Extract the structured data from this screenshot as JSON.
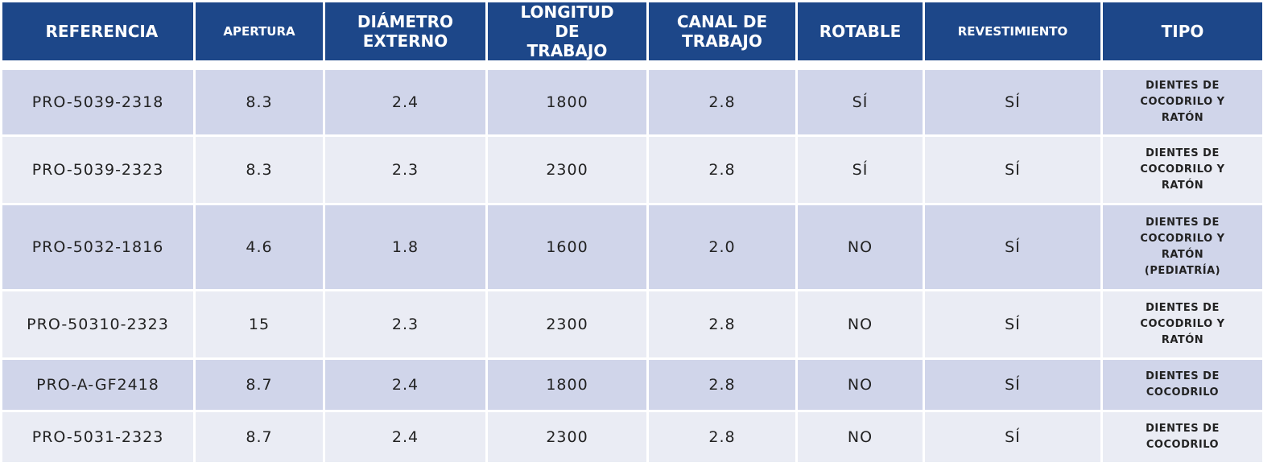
{
  "table": {
    "header": [
      "REFERENCIA",
      "APERTURA",
      "DIÁMETRO EXTERNO",
      "LONGITUD DE TRABAJO",
      "CANAL DE TRABAJO",
      "ROTABLE",
      "REVESTIMIENTO",
      "TIPO"
    ],
    "rows": [
      [
        "PRO-5039-2318",
        "8.3",
        "2.4",
        "1800",
        "2.8",
        "SÍ",
        "SÍ",
        "DIENTES DE COCODRILO Y RATÓN"
      ],
      [
        "PRO-5039-2323",
        "8.3",
        "2.3",
        "2300",
        "2.8",
        "SÍ",
        "SÍ",
        "DIENTES DE COCODRILO Y RATÓN"
      ],
      [
        "PRO-5032-1816",
        "4.6",
        "1.8",
        "1600",
        "2.0",
        "NO",
        "SÍ",
        "DIENTES DE COCODRILO Y RATÓN (PEDIATRÍA)"
      ],
      [
        "PRO-50310-2323",
        "15",
        "2.3",
        "2300",
        "2.8",
        "NO",
        "SÍ",
        "DIENTES DE COCODRILO Y RATÓN"
      ],
      [
        "PRO-A-GF2418",
        "8.7",
        "2.4",
        "1800",
        "2.8",
        "NO",
        "SÍ",
        "DIENTES DE COCODRILO"
      ],
      [
        "PRO-5031-2323",
        "8.7",
        "2.4",
        "2300",
        "2.8",
        "NO",
        "SÍ",
        "DIENTES DE COCODRILO"
      ]
    ]
  }
}
